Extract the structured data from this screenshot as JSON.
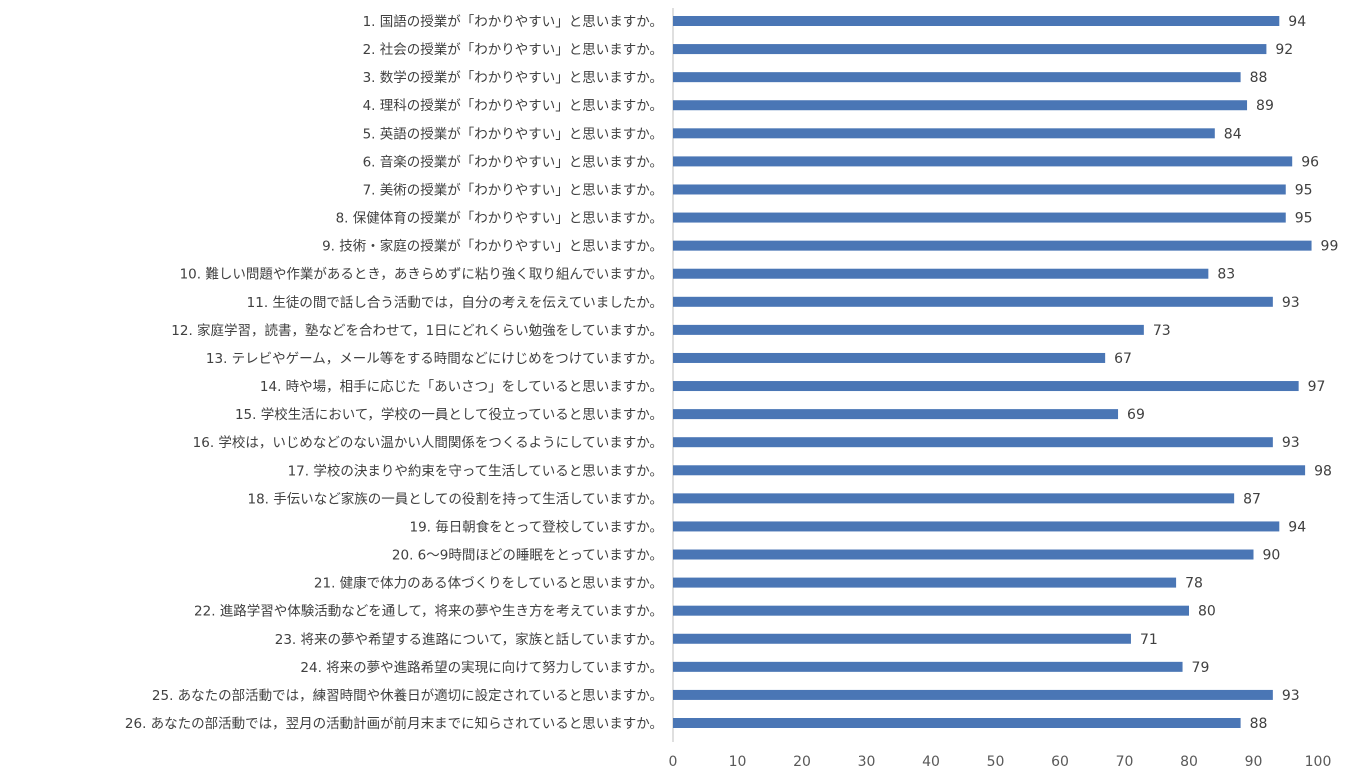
{
  "chart_data": {
    "type": "bar",
    "orientation": "horizontal",
    "title": "",
    "xlabel": "",
    "ylabel": "",
    "xlim": [
      0,
      100
    ],
    "ticks": [
      0,
      10,
      20,
      30,
      40,
      50,
      60,
      70,
      80,
      90,
      100
    ],
    "grid": false,
    "legend": "none",
    "bar_color": "#4a76b5",
    "categories": [
      "1. 国語の授業が「わかりやすい」と思いますか。",
      "2. 社会の授業が「わかりやすい」と思いますか。",
      "3. 数学の授業が「わかりやすい」と思いますか。",
      "4. 理科の授業が「わかりやすい」と思いますか。",
      "5. 英語の授業が「わかりやすい」と思いますか。",
      "6. 音楽の授業が「わかりやすい」と思いますか。",
      "7. 美術の授業が「わかりやすい」と思いますか。",
      "8. 保健体育の授業が「わかりやすい」と思いますか。",
      "9. 技術・家庭の授業が「わかりやすい」と思いますか。",
      "10. 難しい問題や作業があるとき，あきらめずに粘り強く取り組んでいますか。",
      "11. 生徒の間で話し合う活動では，自分の考えを伝えていましたか。",
      "12. 家庭学習，読書，塾などを合わせて，1日にどれくらい勉強をしていますか。",
      "13. テレビやゲーム，メール等をする時間などにけじめをつけていますか。",
      "14. 時や場，相手に応じた「あいさつ」をしていると思いますか。",
      "15. 学校生活において，学校の一員として役立っていると思いますか。",
      "16. 学校は，いじめなどのない温かい人間関係をつくるようにしていますか。",
      "17. 学校の決まりや約束を守って生活していると思いますか。",
      "18. 手伝いなど家族の一員としての役割を持って生活していますか。",
      "19. 毎日朝食をとって登校していますか。",
      "20. 6～9時間ほどの睡眠をとっていますか。",
      "21. 健康で体力のある体づくりをしていると思いますか。",
      "22. 進路学習や体験活動などを通して，将来の夢や生き方を考えていますか。",
      "23. 将来の夢や希望する進路について，家族と話していますか。",
      "24. 将来の夢や進路希望の実現に向けて努力していますか。",
      "25. あなたの部活動では，練習時間や休養日が適切に設定されていると思いますか。",
      "26. あなたの部活動では，翌月の活動計画が前月末までに知らされていると思いますか。"
    ],
    "values": [
      94,
      92,
      88,
      89,
      84,
      96,
      95,
      95,
      99,
      83,
      93,
      73,
      67,
      97,
      69,
      93,
      98,
      87,
      94,
      90,
      78,
      80,
      71,
      79,
      93,
      88
    ]
  }
}
